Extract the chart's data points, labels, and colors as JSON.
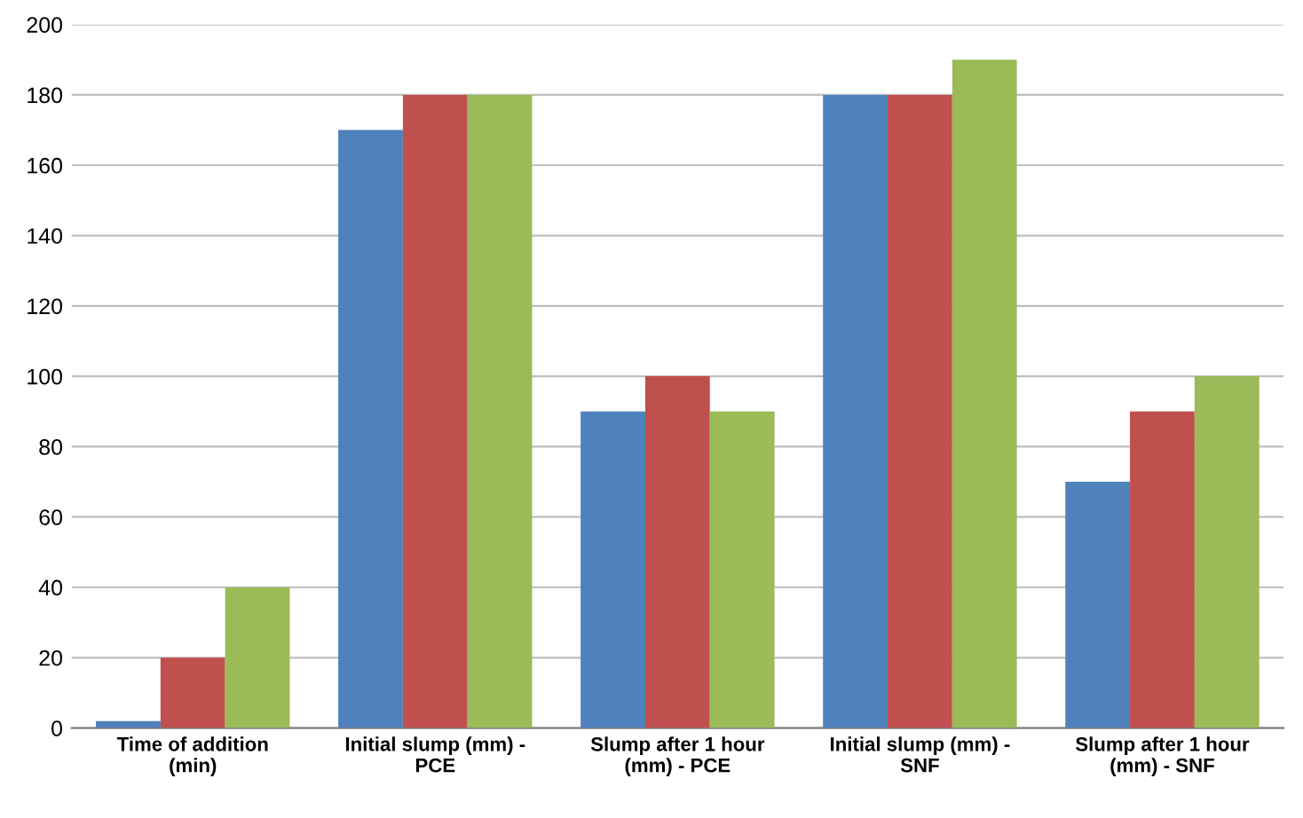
{
  "chart_data": {
    "type": "bar",
    "categories": [
      "Time of addition\n(min)",
      "Initial slump (mm) -\nPCE",
      "Slump after 1 hour\n(mm) - PCE",
      "Initial slump (mm) -\nSNF",
      "Slump after 1 hour\n(mm) - SNF"
    ],
    "series": [
      {
        "color": "#4f81bd",
        "values": [
          2,
          170,
          90,
          180,
          70
        ]
      },
      {
        "color": "#c0504d",
        "values": [
          20,
          180,
          100,
          180,
          90
        ]
      },
      {
        "color": "#9bbb59",
        "values": [
          40,
          180,
          90,
          190,
          100
        ]
      }
    ],
    "ylim": [
      0,
      200
    ],
    "yticks": [
      0,
      20,
      40,
      60,
      80,
      100,
      120,
      140,
      160,
      180,
      200
    ],
    "grid": "y"
  }
}
